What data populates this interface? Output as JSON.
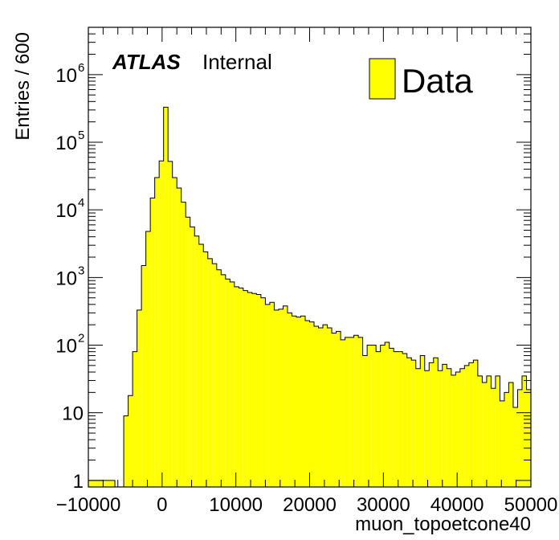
{
  "chart_data": {
    "type": "bar",
    "subtype": "histogram",
    "xlabel": "muon_topoetcone40",
    "ylabel": "Entries / 600",
    "xlim": [
      -10000,
      50000
    ],
    "ylim": [
      0.8,
      5000000
    ],
    "yscale": "log",
    "grid": false,
    "bin_width": 600,
    "legend_placement": "top-right",
    "legend": [
      {
        "name": "Data",
        "color": "#ffff00"
      }
    ],
    "label": {
      "bold_italic": "ATLAS",
      "text": "Internal"
    },
    "x_ticks": [
      {
        "value": -10000,
        "label": "−10000"
      },
      {
        "value": 0,
        "label": "0"
      },
      {
        "value": 10000,
        "label": "10000"
      },
      {
        "value": 20000,
        "label": "20000"
      },
      {
        "value": 30000,
        "label": "30000"
      },
      {
        "value": 40000,
        "label": "40000"
      },
      {
        "value": 50000,
        "label": "50000"
      }
    ],
    "y_ticks": [
      {
        "value": 1,
        "base": "1",
        "exp": ""
      },
      {
        "value": 10,
        "base": "10",
        "exp": ""
      },
      {
        "value": 100,
        "base": "10",
        "exp": "2"
      },
      {
        "value": 1000,
        "base": "10",
        "exp": "3"
      },
      {
        "value": 10000,
        "base": "10",
        "exp": "4"
      },
      {
        "value": 100000,
        "base": "10",
        "exp": "5"
      },
      {
        "value": 1000000,
        "base": "10",
        "exp": "6"
      }
    ],
    "fill_color": "#ffff00",
    "line_color": "#000000",
    "series": [
      {
        "name": "Data",
        "bins": [
          [
            -10000,
            1
          ],
          [
            -9400,
            1
          ],
          [
            -8800,
            1
          ],
          [
            -8200,
            1
          ],
          [
            -7600,
            1
          ],
          [
            -7000,
            1
          ],
          [
            -6400,
            0
          ],
          [
            -5800,
            0
          ],
          [
            -5200,
            9
          ],
          [
            -4600,
            18
          ],
          [
            -4000,
            80
          ],
          [
            -3400,
            330
          ],
          [
            -2800,
            1500
          ],
          [
            -2200,
            4800
          ],
          [
            -1600,
            15000
          ],
          [
            -1000,
            30000
          ],
          [
            -400,
            53000
          ],
          [
            200,
            330000
          ],
          [
            800,
            52000
          ],
          [
            1400,
            30000
          ],
          [
            2000,
            21000
          ],
          [
            2600,
            13000
          ],
          [
            3200,
            7800
          ],
          [
            3800,
            5600
          ],
          [
            4400,
            4100
          ],
          [
            5000,
            3100
          ],
          [
            5600,
            2400
          ],
          [
            6200,
            1900
          ],
          [
            6800,
            1600
          ],
          [
            7400,
            1300
          ],
          [
            8000,
            1100
          ],
          [
            8600,
            950
          ],
          [
            9200,
            860
          ],
          [
            9800,
            730
          ],
          [
            10400,
            700
          ],
          [
            11000,
            640
          ],
          [
            11600,
            600
          ],
          [
            12200,
            580
          ],
          [
            12800,
            560
          ],
          [
            13400,
            500
          ],
          [
            14000,
            400
          ],
          [
            14600,
            430
          ],
          [
            15200,
            330
          ],
          [
            15800,
            340
          ],
          [
            16400,
            380
          ],
          [
            17000,
            300
          ],
          [
            17600,
            270
          ],
          [
            18200,
            260
          ],
          [
            18800,
            270
          ],
          [
            19400,
            230
          ],
          [
            20000,
            220
          ],
          [
            20600,
            190
          ],
          [
            21200,
            180
          ],
          [
            21800,
            200
          ],
          [
            22400,
            180
          ],
          [
            23000,
            150
          ],
          [
            23600,
            160
          ],
          [
            24200,
            120
          ],
          [
            24800,
            130
          ],
          [
            25400,
            130
          ],
          [
            26000,
            140
          ],
          [
            26600,
            130
          ],
          [
            27200,
            70
          ],
          [
            27800,
            100
          ],
          [
            28400,
            100
          ],
          [
            29000,
            80
          ],
          [
            29600,
            100
          ],
          [
            30200,
            110
          ],
          [
            30800,
            90
          ],
          [
            31400,
            80
          ],
          [
            32000,
            80
          ],
          [
            32600,
            75
          ],
          [
            33200,
            65
          ],
          [
            33800,
            60
          ],
          [
            34400,
            45
          ],
          [
            35000,
            70
          ],
          [
            35600,
            42
          ],
          [
            36200,
            55
          ],
          [
            36800,
            65
          ],
          [
            37400,
            42
          ],
          [
            38000,
            52
          ],
          [
            38600,
            45
          ],
          [
            39200,
            36
          ],
          [
            39800,
            40
          ],
          [
            40400,
            45
          ],
          [
            41000,
            50
          ],
          [
            41600,
            55
          ],
          [
            42200,
            60
          ],
          [
            42800,
            35
          ],
          [
            43400,
            28
          ],
          [
            44000,
            35
          ],
          [
            44600,
            23
          ],
          [
            45200,
            35
          ],
          [
            45800,
            15
          ],
          [
            46400,
            20
          ],
          [
            47000,
            28
          ],
          [
            47600,
            12
          ],
          [
            48200,
            22
          ],
          [
            48800,
            35
          ],
          [
            49400,
            22
          ]
        ]
      }
    ]
  }
}
